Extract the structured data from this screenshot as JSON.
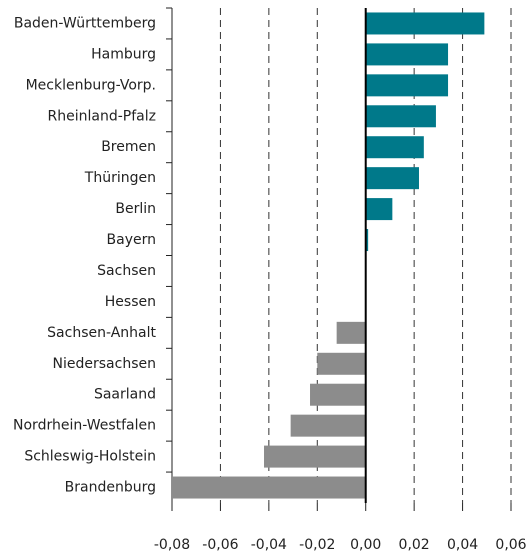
{
  "chart_data": {
    "type": "barh",
    "categories": [
      "Baden-Württemberg",
      "Hamburg",
      "Mecklenburg-Vorp.",
      "Rheinland-Pfalz",
      "Bremen",
      "Thüringen",
      "Berlin",
      "Bayern",
      "Sachsen",
      "Hessen",
      "Sachsen-Anhalt",
      "Niedersachsen",
      "Saarland",
      "Nordrhein-Westfalen",
      "Schleswig-Holstein",
      "Brandenburg"
    ],
    "values": [
      0.049,
      0.034,
      0.034,
      0.029,
      0.024,
      0.022,
      0.011,
      0.001,
      0,
      0,
      -0.012,
      -0.02,
      -0.023,
      -0.031,
      -0.042,
      -0.08
    ],
    "positive_color": "#00798a",
    "negative_color": "#8c8c8c",
    "xlim": [
      -0.08,
      0.06
    ],
    "xticks": [
      {
        "value": -0.08,
        "label": "-0,08"
      },
      {
        "value": -0.06,
        "label": "-0,06"
      },
      {
        "value": -0.04,
        "label": "-0,04"
      },
      {
        "value": -0.02,
        "label": "-0,02"
      },
      {
        "value": 0,
        "label": "0,00"
      },
      {
        "value": 0.02,
        "label": "0,02"
      },
      {
        "value": 0.04,
        "label": "0,04"
      },
      {
        "value": 0.06,
        "label": "0,06"
      }
    ],
    "grid": true
  }
}
